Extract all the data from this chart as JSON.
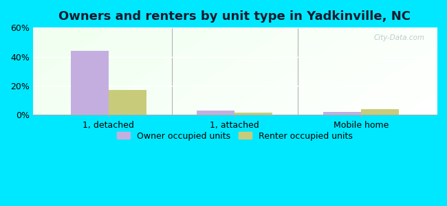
{
  "title": "Owners and renters by unit type in Yadkinville, NC",
  "categories": [
    "1, detached",
    "1, attached",
    "Mobile home"
  ],
  "owner_values": [
    44.0,
    3.0,
    2.0
  ],
  "renter_values": [
    17.0,
    1.5,
    4.0
  ],
  "owner_color": "#c4aee0",
  "renter_color": "#c8cc7a",
  "ylim": [
    0,
    60
  ],
  "yticks": [
    0,
    20,
    40,
    60
  ],
  "ytick_labels": [
    "0%",
    "20%",
    "40%",
    "60%"
  ],
  "bar_width": 0.3,
  "background_outer": "#00e8ff",
  "legend_owner": "Owner occupied units",
  "legend_renter": "Renter occupied units",
  "title_fontsize": 13,
  "tick_fontsize": 9,
  "legend_fontsize": 9,
  "watermark": "City-Data.com"
}
